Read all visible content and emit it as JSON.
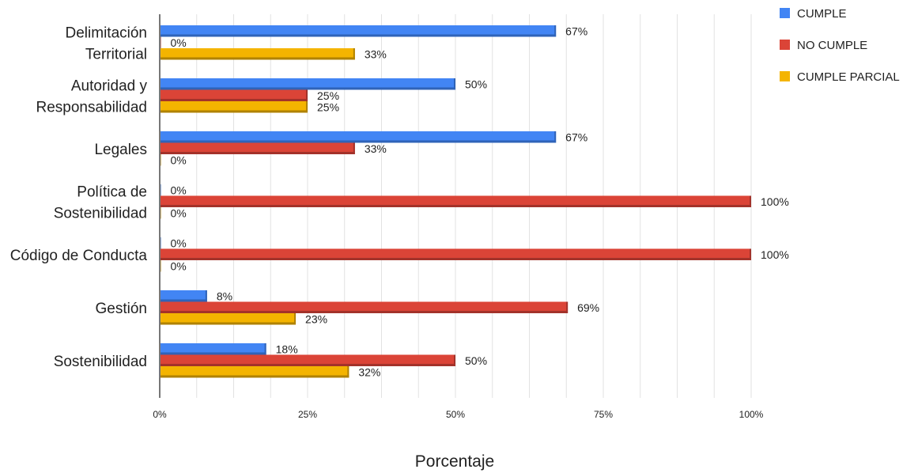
{
  "chart_data": {
    "type": "bar",
    "orientation": "horizontal",
    "categories": [
      [
        "Delimitación",
        "Territorial"
      ],
      [
        "Autoridad y",
        "Responsabilidad"
      ],
      [
        "Legales"
      ],
      [
        "Política de",
        "Sostenibilidad"
      ],
      [
        "Código de Conducta"
      ],
      [
        "Gestión"
      ],
      [
        "Sostenibilidad"
      ]
    ],
    "series": [
      {
        "name": "CUMPLE",
        "color": "#4285f4",
        "shade": "#2f63b8",
        "values": [
          67,
          50,
          67,
          0,
          0,
          8,
          18
        ]
      },
      {
        "name": "NO CUMPLE",
        "color": "#db4437",
        "shade": "#a3322a",
        "values": [
          0,
          25,
          33,
          100,
          100,
          69,
          50
        ]
      },
      {
        "name": "CUMPLE PARCIAL",
        "color": "#f4b400",
        "shade": "#b08200",
        "values": [
          33,
          25,
          0,
          0,
          0,
          23,
          32
        ]
      }
    ],
    "data_labels": [
      [
        "67%",
        "50%",
        "67%",
        "0%",
        "0%",
        "8%",
        "18%"
      ],
      [
        "0%",
        "25%",
        "33%",
        "100%",
        "100%",
        "69%",
        "50%"
      ],
      [
        "33%",
        "25%",
        "0%",
        "0%",
        "0%",
        "23%",
        "32%"
      ]
    ],
    "xlim": [
      0,
      100
    ],
    "xticks": [
      0,
      25,
      50,
      75,
      100
    ],
    "xtick_labels": [
      "0%",
      "25%",
      "50%",
      "75%",
      "100%"
    ],
    "xlabel": "Porcentaje",
    "ylabel": "",
    "grid": true,
    "legend_position": "top-right"
  }
}
